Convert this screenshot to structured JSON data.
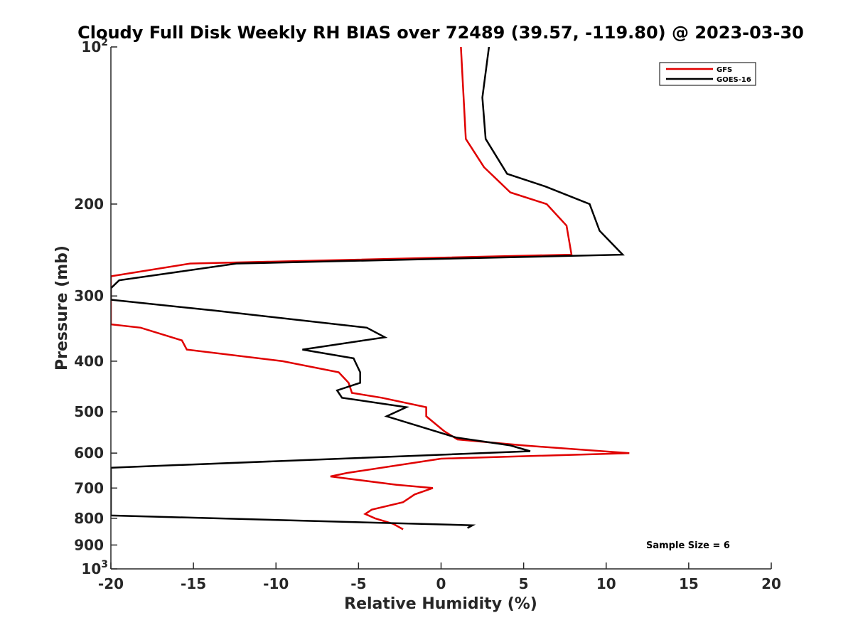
{
  "chart_data": {
    "type": "line",
    "title": "Cloudy Full Disk Weekly RH BIAS over 72489 (39.57, -119.80) @ 2023-03-30",
    "xlabel": "Relative Humidity (%)",
    "ylabel": "Pressure (mb)",
    "xlim": [
      -20,
      20
    ],
    "ylim": [
      100,
      1000
    ],
    "y_scale": "log",
    "y_reversed": true,
    "grid": false,
    "legend_position": "top-right",
    "x_ticks": [
      -20,
      -15,
      -10,
      -5,
      0,
      5,
      10,
      15,
      20
    ],
    "x_tick_labels": [
      "-20",
      "-15",
      "-10",
      "-5",
      "0",
      "5",
      "10",
      "15",
      "20"
    ],
    "y_ticks": [
      {
        "value": 100,
        "base": "10",
        "exp": "2"
      },
      {
        "value": 200,
        "label": "200"
      },
      {
        "value": 300,
        "label": "300"
      },
      {
        "value": 400,
        "label": "400"
      },
      {
        "value": 500,
        "label": "500"
      },
      {
        "value": 600,
        "label": "600"
      },
      {
        "value": 700,
        "label": "700"
      },
      {
        "value": 800,
        "label": "800"
      },
      {
        "value": 900,
        "label": "900"
      },
      {
        "value": 1000,
        "base": "10",
        "exp": "3"
      }
    ],
    "annotation": "Sample Size = 6",
    "series": [
      {
        "name": "GFS",
        "color": "#e00000",
        "points": [
          [
            1.2,
            100
          ],
          [
            1.5,
            150
          ],
          [
            2.6,
            170
          ],
          [
            4.2,
            190
          ],
          [
            6.4,
            200
          ],
          [
            7.6,
            220
          ],
          [
            7.9,
            250
          ],
          [
            -15.2,
            260
          ],
          [
            -20,
            275
          ],
          [
            -20,
            340
          ],
          [
            -18.2,
            345
          ],
          [
            -15.7,
            365
          ],
          [
            -15.4,
            380
          ],
          [
            -9.6,
            400
          ],
          [
            -6.2,
            420
          ],
          [
            -5.6,
            440
          ],
          [
            -5.4,
            460
          ],
          [
            -3.6,
            470
          ],
          [
            -0.9,
            490
          ],
          [
            -0.9,
            510
          ],
          [
            0.2,
            545
          ],
          [
            1.0,
            565
          ],
          [
            5.0,
            580
          ],
          [
            11.4,
            600
          ],
          [
            0.0,
            615
          ],
          [
            -5.7,
            655
          ],
          [
            -6.7,
            665
          ],
          [
            -2.7,
            690
          ],
          [
            -0.5,
            700
          ],
          [
            -1.6,
            720
          ],
          [
            -2.3,
            745
          ],
          [
            -4.2,
            770
          ],
          [
            -4.6,
            785
          ],
          [
            -4.0,
            800
          ],
          [
            -2.9,
            820
          ],
          [
            -2.3,
            840
          ]
        ]
      },
      {
        "name": "GOES-16",
        "color": "#000000",
        "points": [
          [
            2.9,
            100
          ],
          [
            2.5,
            125
          ],
          [
            2.7,
            150
          ],
          [
            4.0,
            175
          ],
          [
            6.3,
            185
          ],
          [
            9.0,
            200
          ],
          [
            9.6,
            225
          ],
          [
            11.0,
            250
          ],
          [
            -12.4,
            260
          ],
          [
            -19.5,
            280
          ],
          [
            -20,
            290
          ],
          [
            -20,
            305
          ],
          [
            -13.7,
            320
          ],
          [
            -4.5,
            345
          ],
          [
            -3.4,
            360
          ],
          [
            -8.4,
            380
          ],
          [
            -5.3,
            395
          ],
          [
            -4.9,
            420
          ],
          [
            -4.9,
            440
          ],
          [
            -6.3,
            455
          ],
          [
            -6.0,
            470
          ],
          [
            -2.1,
            490
          ],
          [
            -3.3,
            510
          ],
          [
            0.9,
            560
          ],
          [
            4.2,
            580
          ],
          [
            5.4,
            595
          ],
          [
            -20,
            640
          ],
          [
            -20,
            790
          ],
          [
            1.9,
            825
          ],
          [
            1.6,
            835
          ]
        ]
      }
    ]
  }
}
